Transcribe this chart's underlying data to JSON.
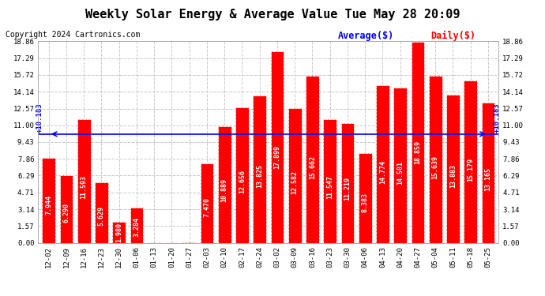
{
  "title": "Weekly Solar Energy & Average Value Tue May 28 20:09",
  "copyright": "Copyright 2024 Cartronics.com",
  "legend_average_label": "Average($)",
  "legend_daily_label": "Daily($)",
  "average_value": 10.183,
  "categories": [
    "12-02",
    "12-09",
    "12-16",
    "12-23",
    "12-30",
    "01-06",
    "01-13",
    "01-20",
    "01-27",
    "02-03",
    "02-10",
    "02-17",
    "02-24",
    "03-02",
    "03-09",
    "03-16",
    "03-23",
    "03-30",
    "04-06",
    "04-13",
    "04-20",
    "04-27",
    "05-04",
    "05-11",
    "05-18",
    "05-25"
  ],
  "values": [
    7.944,
    6.29,
    11.593,
    5.629,
    1.98,
    3.284,
    0.0,
    0.0,
    0.013,
    7.47,
    10.889,
    12.656,
    13.825,
    17.899,
    12.582,
    15.662,
    11.547,
    11.219,
    8.383,
    14.774,
    14.501,
    18.859,
    15.639,
    13.883,
    15.179,
    13.165
  ],
  "bar_color": "#ff0000",
  "bar_edge_color": "#ffffff",
  "average_line_color": "#0000ff",
  "average_label_value": "10.183",
  "background_color": "#ffffff",
  "grid_color": "#c8c8c8",
  "title_fontsize": 11,
  "copyright_fontsize": 7,
  "tick_fontsize": 6.5,
  "value_fontsize": 6,
  "ylim": [
    0.0,
    18.86
  ],
  "yticks": [
    0.0,
    1.57,
    3.14,
    4.71,
    6.29,
    7.86,
    9.43,
    11.0,
    12.57,
    14.14,
    15.72,
    17.29,
    18.86
  ]
}
